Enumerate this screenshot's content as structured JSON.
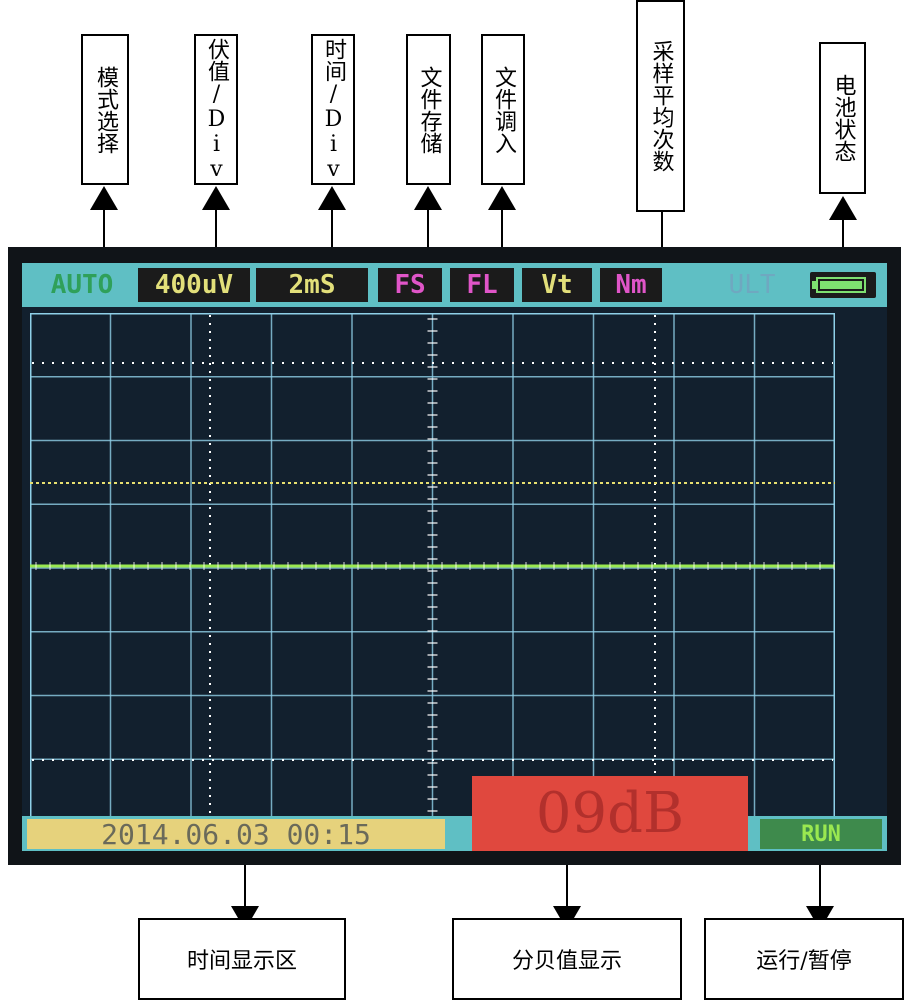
{
  "top_labels": [
    {
      "key": "mode",
      "text": "模式选择"
    },
    {
      "key": "volt",
      "text": "伏值/Div"
    },
    {
      "key": "time",
      "text": "时间/Div"
    },
    {
      "key": "save",
      "text": "文件存储"
    },
    {
      "key": "load",
      "text": "文件调入"
    },
    {
      "key": "avg",
      "text": "采样平均次数"
    },
    {
      "key": "battery",
      "text": "电池状态"
    }
  ],
  "bottom_labels": [
    {
      "key": "clock",
      "text": "时间显示区"
    },
    {
      "key": "db",
      "text": "分贝值显示"
    },
    {
      "key": "run",
      "text": "运行/暂停"
    }
  ],
  "status_bar": {
    "mode": "AUTO",
    "volt_div": "400uV",
    "time_div": "2mS",
    "file_save": "FS",
    "file_load": "FL",
    "vt": "Vt",
    "nm": "Nm",
    "ult": "ULT",
    "battery_icon": "battery-full-icon",
    "battery_level": 1.0
  },
  "footer": {
    "datetime": "2014.06.03  00:15",
    "decibel": "09dB",
    "run_state": "RUN"
  },
  "colors": {
    "bar_cyan": "#5fbfc4",
    "screen_bg": "#12202e",
    "grid_line": "#8fd0e8",
    "trace_yellow": "#e8e070",
    "trace_green": "#9ae850",
    "mode_green": "#2fa05a",
    "chip_black": "#1b1b1b",
    "chip_magenta": "#e055c8",
    "chip_yellow": "#e2df7a",
    "date_bg": "#e6d27c",
    "db_red": "#e0483e",
    "run_green": "#3e8a4c",
    "run_text": "#9ae850"
  }
}
